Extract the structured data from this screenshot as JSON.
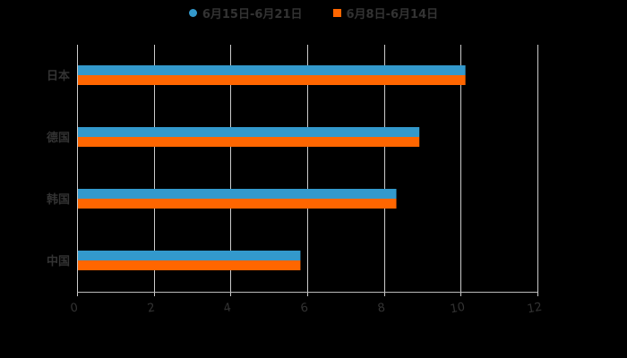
{
  "chart_data": {
    "type": "bar",
    "orientation": "horizontal",
    "title": "",
    "categories": [
      "日本",
      "德国",
      "韩国",
      "中国"
    ],
    "series": [
      {
        "name": "6月15日-6月21日",
        "color": "#3399cc",
        "values": [
          10.1,
          8.9,
          8.3,
          5.8
        ]
      },
      {
        "name": "6月8日-6月14日",
        "color": "#ff6600",
        "values": [
          10.1,
          8.9,
          8.3,
          5.8
        ]
      }
    ],
    "xlabel": "",
    "ylabel": "",
    "xlim": [
      0,
      12
    ],
    "xticks": [
      "0",
      "2",
      "4",
      "6",
      "8",
      "10",
      "12"
    ],
    "grid": true,
    "legend_position": "top"
  },
  "legend": {
    "items": [
      {
        "label": "6月15日-6月21日",
        "color": "#3399cc",
        "marker": "circle"
      },
      {
        "label": "6月8日-6月14日",
        "color": "#ff6600",
        "marker": "square"
      }
    ]
  },
  "colors": {
    "background": "#000000",
    "grid": "#cccccc",
    "text": "#333333"
  }
}
